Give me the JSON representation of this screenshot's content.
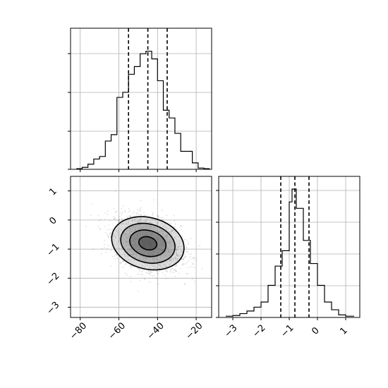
{
  "chart_data": [
    {
      "type": "histogram",
      "panel": "top-left",
      "xlim": [
        -85,
        -12
      ],
      "ylim": [
        0,
        1
      ],
      "grid": true,
      "bins": [
        -82,
        -79,
        -76,
        -73,
        -70,
        -67,
        -64,
        -61,
        -58,
        -55,
        -52,
        -49,
        -46,
        -43,
        -40,
        -37,
        -34,
        -31,
        -28,
        -25,
        -22,
        -19,
        -16,
        -13
      ],
      "counts": [
        0.005,
        0.015,
        0.04,
        0.08,
        0.1,
        0.22,
        0.27,
        0.56,
        0.6,
        0.74,
        0.8,
        0.9,
        0.92,
        0.86,
        0.69,
        0.46,
        0.4,
        0.28,
        0.14,
        0.14,
        0.05,
        0.01,
        0.005
      ],
      "quantiles": [
        -55,
        -45,
        -35
      ]
    },
    {
      "type": "scatter",
      "panel": "bottom-left",
      "xlim": [
        -85,
        -12
      ],
      "ylim": [
        -3.35,
        1.5
      ],
      "grid": true,
      "x_ticks": [
        -80,
        -60,
        -40,
        -20
      ],
      "x_tick_labels": [
        "−80",
        "−60",
        "−40",
        "−20"
      ],
      "y_ticks": [
        -3,
        -2,
        -1,
        0,
        1
      ],
      "y_tick_labels": [
        "−3",
        "−2",
        "−1",
        "0",
        "1"
      ],
      "density_center": [
        -45,
        -0.8
      ],
      "density_spread": [
        8.5,
        0.45
      ],
      "correlation": -0.3,
      "contour_levels": [
        0.5,
        1.0,
        1.5,
        2.0
      ],
      "contour_tilt_deg": 15
    },
    {
      "type": "histogram",
      "panel": "bottom-right",
      "xlim": [
        -3.5,
        1.5
      ],
      "ylim": [
        0,
        1
      ],
      "grid": true,
      "x_ticks": [
        -3,
        -2,
        -1,
        0,
        1
      ],
      "x_tick_labels": [
        "−3",
        "−2",
        "−1",
        "0",
        "1"
      ],
      "bins": [
        -3.25,
        -3.0,
        -2.75,
        -2.5,
        -2.25,
        -2.0,
        -1.75,
        -1.5,
        -1.25,
        -1.0,
        -0.9,
        -0.75,
        -0.5,
        -0.25,
        0.0,
        0.25,
        0.5,
        0.75,
        1.0,
        1.3
      ],
      "counts": [
        0.01,
        0.015,
        0.03,
        0.05,
        0.08,
        0.12,
        0.25,
        0.4,
        0.52,
        0.9,
        1.0,
        0.85,
        0.6,
        0.42,
        0.25,
        0.12,
        0.06,
        0.02,
        0.01
      ],
      "quantiles": [
        -1.3,
        -0.8,
        -0.3
      ]
    }
  ]
}
